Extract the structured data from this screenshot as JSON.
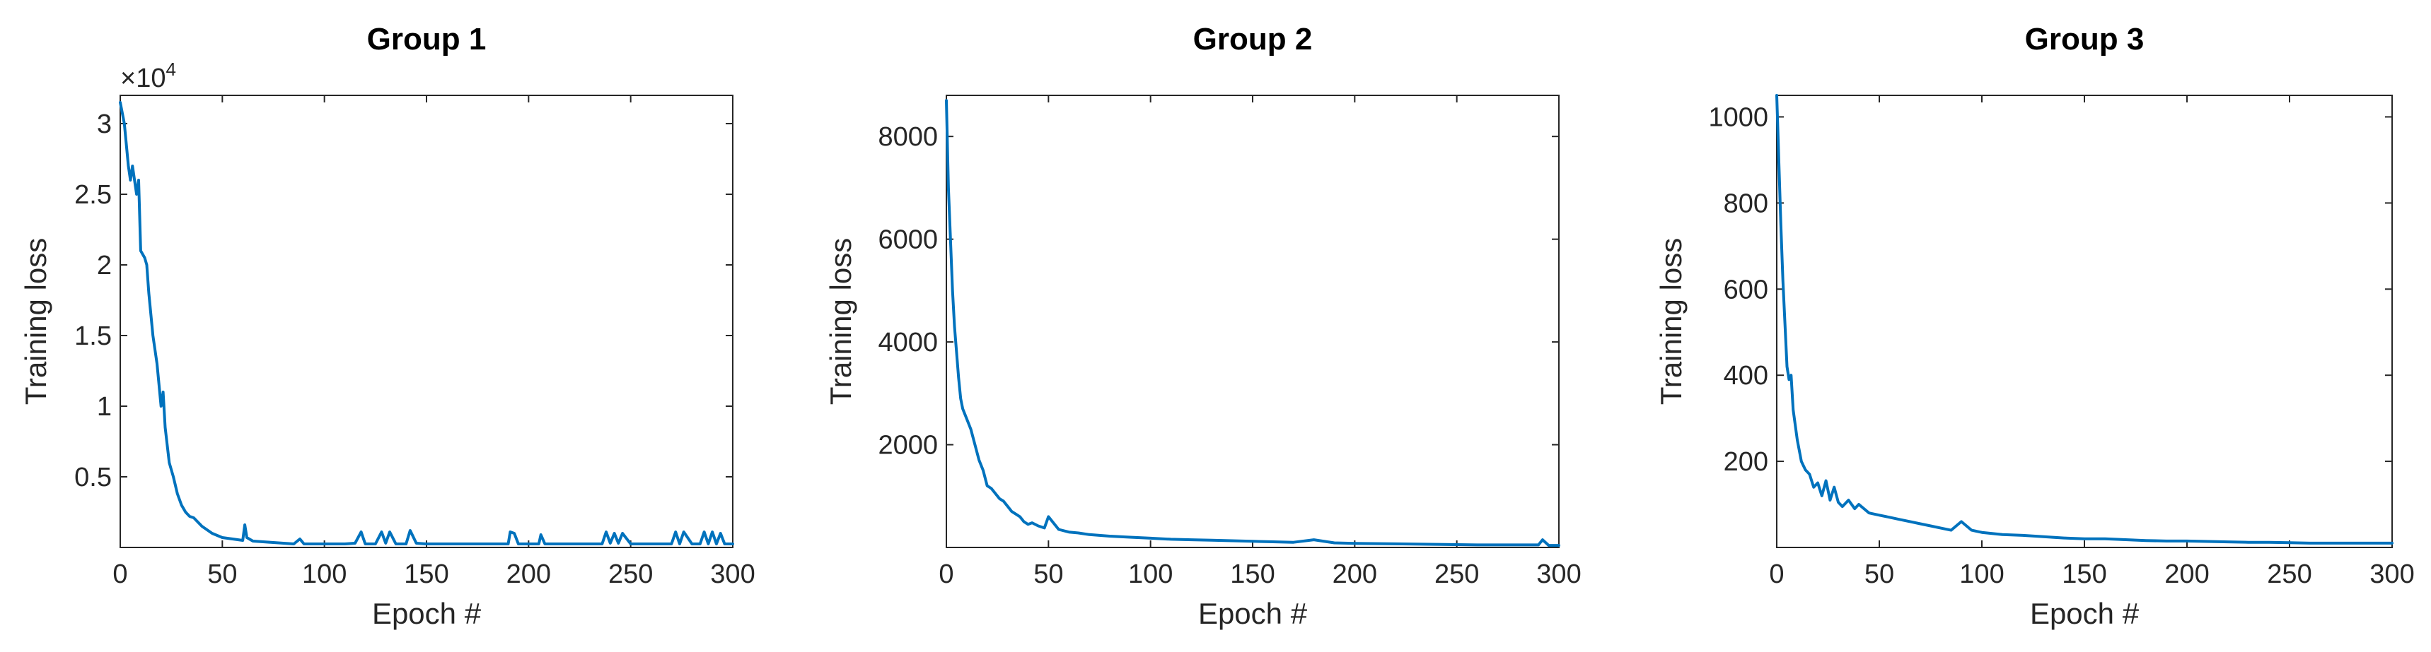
{
  "chart_data": [
    {
      "type": "line",
      "title": "Group 1",
      "xlabel": "Epoch #",
      "ylabel": "Training loss",
      "exponent": {
        "base": "×10",
        "power": "4"
      },
      "xlim": [
        0,
        300
      ],
      "ylim": [
        0,
        32000
      ],
      "xticks": [
        0,
        50,
        100,
        150,
        200,
        250,
        300
      ],
      "xtick_labels": [
        "0",
        "50",
        "100",
        "150",
        "200",
        "250",
        "300"
      ],
      "yticks": [
        5000,
        10000,
        15000,
        20000,
        25000,
        30000
      ],
      "ytick_labels": [
        "0.5",
        "1",
        "1.5",
        "2",
        "2.5",
        "3"
      ],
      "grid": false,
      "color": "#0072BD",
      "series": [
        {
          "x": [
            0,
            2,
            4,
            5,
            6,
            8,
            9,
            10,
            12,
            13,
            14,
            16,
            18,
            20,
            21,
            22,
            24,
            26,
            28,
            30,
            32,
            34,
            36,
            38,
            40,
            45,
            50,
            55,
            60,
            61,
            62,
            65,
            70,
            75,
            80,
            85,
            88,
            90,
            95,
            100,
            105,
            110,
            115,
            118,
            120,
            125,
            128,
            130,
            132,
            135,
            140,
            142,
            145,
            150,
            160,
            170,
            180,
            190,
            191,
            193,
            195,
            200,
            205,
            206,
            208,
            210,
            220,
            230,
            236,
            238,
            240,
            242,
            244,
            246,
            250,
            260,
            270,
            272,
            274,
            276,
            280,
            284,
            286,
            288,
            290,
            292,
            294,
            296,
            300
          ],
          "y": [
            31500,
            30000,
            27000,
            26000,
            27000,
            25000,
            26000,
            21000,
            20500,
            20000,
            18000,
            15000,
            13000,
            10000,
            11000,
            8500,
            6000,
            5000,
            3800,
            3000,
            2500,
            2200,
            2100,
            1800,
            1500,
            1000,
            700,
            600,
            500,
            1600,
            700,
            450,
            400,
            350,
            300,
            250,
            600,
            250,
            250,
            250,
            250,
            250,
            300,
            1100,
            250,
            250,
            1100,
            300,
            1100,
            250,
            250,
            1200,
            300,
            250,
            250,
            250,
            250,
            250,
            1100,
            1000,
            250,
            250,
            250,
            900,
            250,
            250,
            250,
            250,
            250,
            1100,
            300,
            1000,
            300,
            1000,
            250,
            250,
            250,
            1100,
            250,
            1100,
            250,
            250,
            1100,
            250,
            1100,
            250,
            1000,
            250,
            250
          ]
        }
      ]
    },
    {
      "type": "line",
      "title": "Group 2",
      "xlabel": "Epoch #",
      "ylabel": "Training loss",
      "xlim": [
        0,
        300
      ],
      "ylim": [
        0,
        8800
      ],
      "xticks": [
        0,
        50,
        100,
        150,
        200,
        250,
        300
      ],
      "xtick_labels": [
        "0",
        "50",
        "100",
        "150",
        "200",
        "250",
        "300"
      ],
      "yticks": [
        2000,
        4000,
        6000,
        8000
      ],
      "ytick_labels": [
        "2000",
        "4000",
        "6000",
        "8000"
      ],
      "grid": false,
      "color": "#0072BD",
      "series": [
        {
          "x": [
            0,
            1,
            2,
            3,
            4,
            5,
            6,
            7,
            8,
            10,
            12,
            14,
            16,
            18,
            20,
            22,
            24,
            26,
            28,
            30,
            32,
            34,
            36,
            38,
            40,
            42,
            45,
            48,
            50,
            55,
            60,
            65,
            70,
            80,
            90,
            100,
            110,
            120,
            130,
            140,
            150,
            160,
            170,
            180,
            190,
            200,
            220,
            240,
            260,
            280,
            290,
            292,
            295,
            300
          ],
          "y": [
            8700,
            7000,
            6000,
            5000,
            4300,
            3800,
            3300,
            2900,
            2700,
            2500,
            2300,
            2000,
            1700,
            1500,
            1200,
            1150,
            1050,
            950,
            900,
            800,
            700,
            650,
            600,
            500,
            450,
            480,
            420,
            380,
            600,
            350,
            300,
            280,
            250,
            220,
            200,
            180,
            160,
            150,
            140,
            130,
            120,
            110,
            100,
            150,
            90,
            80,
            70,
            60,
            50,
            50,
            50,
            150,
            40,
            40
          ]
        }
      ]
    },
    {
      "type": "line",
      "title": "Group 3",
      "xlabel": "Epoch #",
      "ylabel": "Training loss",
      "xlim": [
        0,
        300
      ],
      "ylim": [
        0,
        1050
      ],
      "xticks": [
        0,
        50,
        100,
        150,
        200,
        250,
        300
      ],
      "xtick_labels": [
        "0",
        "50",
        "100",
        "150",
        "200",
        "250",
        "300"
      ],
      "yticks": [
        200,
        400,
        600,
        800,
        1000
      ],
      "ytick_labels": [
        "200",
        "400",
        "600",
        "800",
        "1000"
      ],
      "grid": false,
      "color": "#0072BD",
      "series": [
        {
          "x": [
            0,
            1,
            2,
            3,
            4,
            5,
            6,
            7,
            8,
            10,
            12,
            14,
            16,
            18,
            20,
            22,
            24,
            26,
            28,
            30,
            32,
            35,
            38,
            40,
            45,
            50,
            55,
            60,
            65,
            70,
            75,
            80,
            85,
            90,
            95,
            100,
            110,
            120,
            130,
            140,
            150,
            160,
            170,
            180,
            190,
            200,
            210,
            220,
            230,
            240,
            250,
            260,
            270,
            280,
            290,
            300
          ],
          "y": [
            1050,
            900,
            750,
            620,
            520,
            420,
            390,
            400,
            320,
            250,
            200,
            180,
            170,
            140,
            150,
            120,
            155,
            110,
            140,
            105,
            95,
            110,
            90,
            100,
            80,
            75,
            70,
            65,
            60,
            55,
            50,
            45,
            40,
            60,
            40,
            35,
            30,
            28,
            25,
            22,
            20,
            20,
            18,
            16,
            15,
            15,
            14,
            13,
            12,
            12,
            11,
            10,
            10,
            10,
            10,
            10
          ]
        }
      ]
    }
  ]
}
